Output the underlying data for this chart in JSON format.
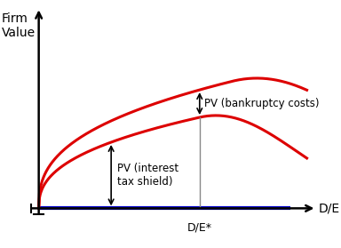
{
  "background_color": "#ffffff",
  "blue_line_color": "#0000cc",
  "blue_line_lw": 3.0,
  "red_color": "#dd0000",
  "red_lw": 2.2,
  "gray_line_color": "#888888",
  "label_firm_value": "Firm\nValue",
  "label_de": "D/E",
  "label_destar": "D/E*",
  "label_pv_tax": "PV (interest\ntax shield)",
  "label_pv_bank": "PV (bankruptcy costs)",
  "font_size_title": 10,
  "font_size_annot": 8.5,
  "font_size_de": 10,
  "font_size_destar": 9
}
